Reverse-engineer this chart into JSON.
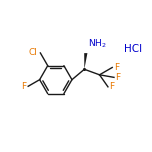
{
  "bg_color": "#ffffff",
  "bond_color": "#1a1a1a",
  "atom_colors": {
    "N": "#0000cd",
    "F": "#e87800",
    "Cl": "#e87800",
    "HCl": "#0000cd"
  },
  "figsize": [
    1.52,
    1.52
  ],
  "dpi": 100,
  "bond_lw": 1.0
}
